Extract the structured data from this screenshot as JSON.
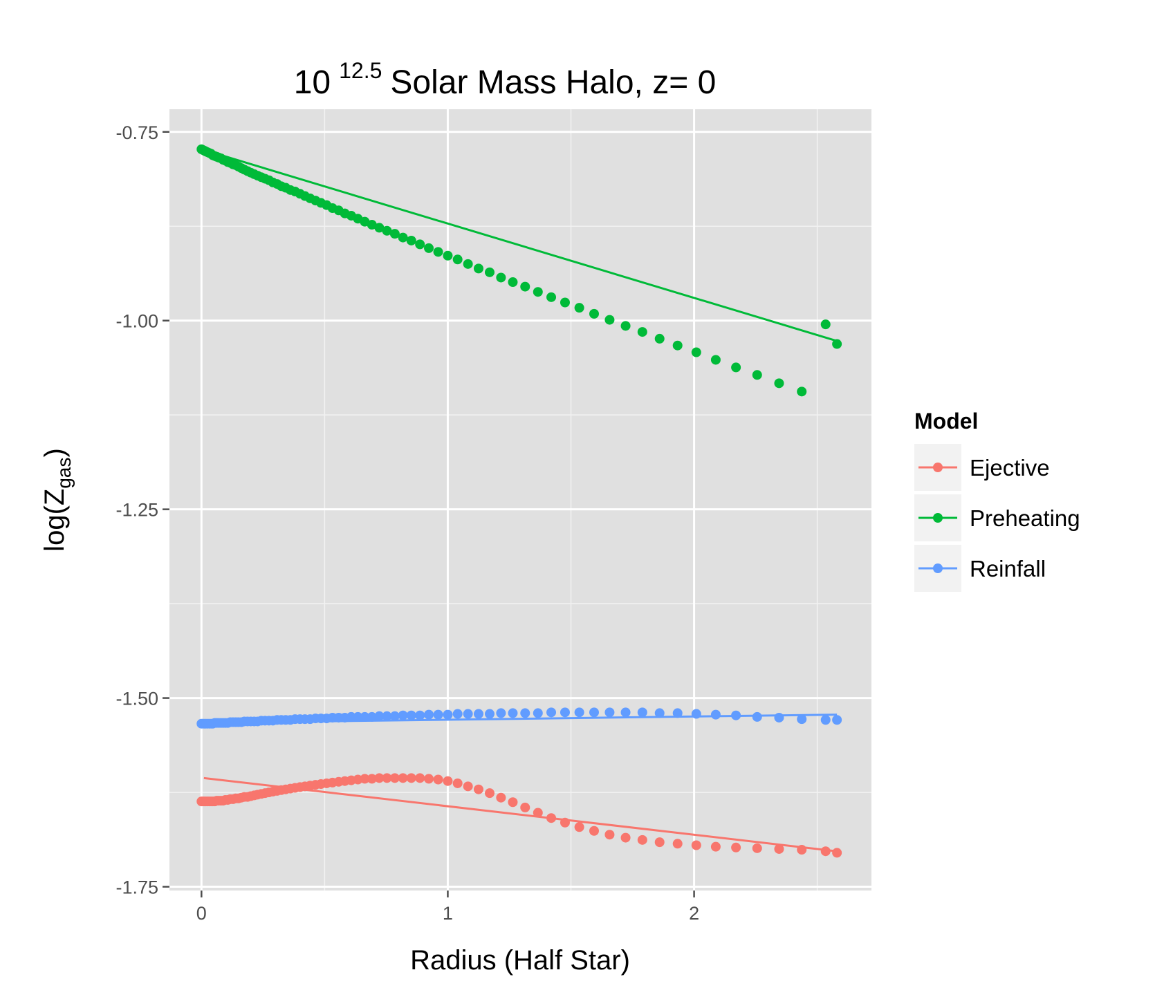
{
  "chart_data": {
    "type": "scatter",
    "title": {
      "base": "10",
      "exponent": "12.5",
      "rest": "Solar Mass Halo, z= 0"
    },
    "xlabel": "Radius (Half Star)",
    "ylabel": {
      "pre": "log(Z",
      "sub": "gas",
      "post": ")"
    },
    "xlim": [
      -0.13,
      2.72
    ],
    "ylim": [
      -1.755,
      -0.72
    ],
    "x_ticks": [
      0,
      1,
      2
    ],
    "x_tick_labels": [
      "0",
      "1",
      "2"
    ],
    "y_ticks": [
      -0.75,
      -1.0,
      -1.25,
      -1.5,
      -1.75
    ],
    "y_tick_labels": [
      "-0.75",
      "-1.00",
      "-1.25",
      "-1.50",
      "-1.75"
    ],
    "grid": true,
    "background": "#e0e0e0",
    "legend": {
      "title": "Model",
      "position": "right"
    },
    "x": [
      0.0,
      0.006,
      0.012,
      0.018,
      0.025,
      0.032,
      0.039,
      0.046,
      0.054,
      0.062,
      0.07,
      0.079,
      0.088,
      0.097,
      0.107,
      0.117,
      0.128,
      0.139,
      0.15,
      0.162,
      0.174,
      0.187,
      0.2,
      0.214,
      0.228,
      0.243,
      0.258,
      0.274,
      0.29,
      0.307,
      0.324,
      0.342,
      0.361,
      0.38,
      0.4,
      0.42,
      0.441,
      0.463,
      0.485,
      0.508,
      0.532,
      0.557,
      0.582,
      0.608,
      0.635,
      0.663,
      0.692,
      0.722,
      0.753,
      0.785,
      0.818,
      0.852,
      0.887,
      0.923,
      0.961,
      1.0,
      1.04,
      1.082,
      1.125,
      1.17,
      1.216,
      1.264,
      1.314,
      1.366,
      1.42,
      1.476,
      1.534,
      1.594,
      1.657,
      1.722,
      1.79,
      1.86,
      1.933,
      2.009,
      2.088,
      2.17,
      2.256,
      2.345,
      2.437,
      2.534,
      2.58
    ],
    "series": [
      {
        "name": "Ejective",
        "color": "#f8766d",
        "y": [
          -1.637,
          -1.637,
          -1.637,
          -1.637,
          -1.637,
          -1.637,
          -1.637,
          -1.637,
          -1.637,
          -1.636,
          -1.636,
          -1.636,
          -1.636,
          -1.635,
          -1.635,
          -1.634,
          -1.634,
          -1.633,
          -1.633,
          -1.632,
          -1.631,
          -1.631,
          -1.63,
          -1.629,
          -1.628,
          -1.627,
          -1.626,
          -1.625,
          -1.624,
          -1.623,
          -1.622,
          -1.621,
          -1.62,
          -1.619,
          -1.618,
          -1.617,
          -1.616,
          -1.615,
          -1.614,
          -1.613,
          -1.612,
          -1.611,
          -1.61,
          -1.609,
          -1.608,
          -1.607,
          -1.607,
          -1.606,
          -1.606,
          -1.606,
          -1.606,
          -1.606,
          -1.606,
          -1.607,
          -1.608,
          -1.61,
          -1.613,
          -1.617,
          -1.621,
          -1.626,
          -1.632,
          -1.638,
          -1.645,
          -1.652,
          -1.659,
          -1.665,
          -1.671,
          -1.676,
          -1.681,
          -1.685,
          -1.688,
          -1.691,
          -1.693,
          -1.695,
          -1.697,
          -1.698,
          -1.699,
          -1.7,
          -1.701,
          -1.703,
          -1.705
        ],
        "fit": {
          "x": [
            0.01,
            2.58
          ],
          "y": [
            -1.606,
            -1.703
          ]
        }
      },
      {
        "name": "Preheating",
        "color": "#00ba38",
        "y": [
          -0.773,
          -0.774,
          -0.775,
          -0.776,
          -0.777,
          -0.778,
          -0.779,
          -0.781,
          -0.782,
          -0.783,
          -0.784,
          -0.785,
          -0.787,
          -0.788,
          -0.79,
          -0.791,
          -0.793,
          -0.794,
          -0.796,
          -0.798,
          -0.8,
          -0.802,
          -0.804,
          -0.806,
          -0.808,
          -0.81,
          -0.812,
          -0.814,
          -0.817,
          -0.819,
          -0.822,
          -0.824,
          -0.827,
          -0.829,
          -0.832,
          -0.835,
          -0.838,
          -0.841,
          -0.844,
          -0.847,
          -0.851,
          -0.854,
          -0.858,
          -0.861,
          -0.865,
          -0.869,
          -0.873,
          -0.877,
          -0.881,
          -0.885,
          -0.89,
          -0.894,
          -0.899,
          -0.904,
          -0.909,
          -0.914,
          -0.919,
          -0.925,
          -0.931,
          -0.936,
          -0.943,
          -0.949,
          -0.955,
          -0.962,
          -0.969,
          -0.976,
          -0.983,
          -0.991,
          -0.999,
          -1.007,
          -1.015,
          -1.024,
          -1.033,
          -1.042,
          -1.052,
          -1.062,
          -1.072,
          -1.083,
          -1.094,
          -1.005,
          -1.031
        ],
        "fit": {
          "x": [
            0.0,
            2.58
          ],
          "y": [
            -0.773,
            -1.027
          ]
        }
      },
      {
        "name": "Reinfall",
        "color": "#619cff",
        "y": [
          -1.534,
          -1.534,
          -1.534,
          -1.534,
          -1.534,
          -1.534,
          -1.534,
          -1.534,
          -1.533,
          -1.533,
          -1.533,
          -1.533,
          -1.533,
          -1.533,
          -1.533,
          -1.532,
          -1.532,
          -1.532,
          -1.532,
          -1.532,
          -1.531,
          -1.531,
          -1.531,
          -1.531,
          -1.531,
          -1.53,
          -1.53,
          -1.53,
          -1.53,
          -1.529,
          -1.529,
          -1.529,
          -1.529,
          -1.528,
          -1.528,
          -1.528,
          -1.528,
          -1.527,
          -1.527,
          -1.527,
          -1.526,
          -1.526,
          -1.526,
          -1.525,
          -1.525,
          -1.525,
          -1.525,
          -1.524,
          -1.524,
          -1.524,
          -1.523,
          -1.523,
          -1.523,
          -1.522,
          -1.522,
          -1.522,
          -1.521,
          -1.521,
          -1.521,
          -1.521,
          -1.52,
          -1.52,
          -1.52,
          -1.52,
          -1.519,
          -1.519,
          -1.519,
          -1.519,
          -1.519,
          -1.519,
          -1.519,
          -1.52,
          -1.52,
          -1.521,
          -1.522,
          -1.523,
          -1.525,
          -1.526,
          -1.528,
          -1.529,
          -1.529
        ],
        "fit": {
          "x": [
            0.0,
            2.58
          ],
          "y": [
            -1.533,
            -1.522
          ]
        }
      }
    ]
  }
}
